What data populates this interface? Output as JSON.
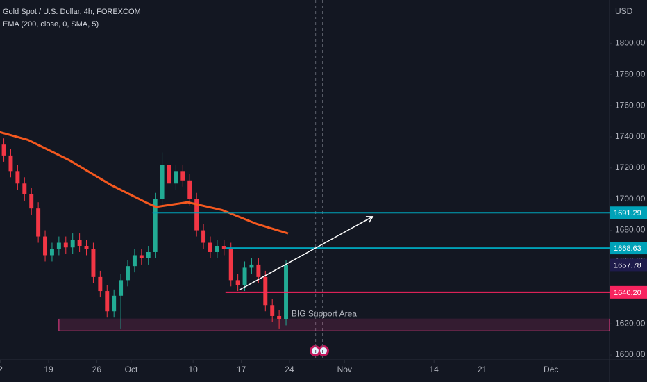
{
  "chart_data": {
    "type": "candlestick",
    "title": "Gold Spot / U.S. Dollar, 4h, FOREXCOM",
    "subtitle": "EMA (200, close, 0, SMA, 5)",
    "y_axis_label": "USD",
    "xlim": [
      254.94,
      343.5
    ],
    "xticks": [
      {
        "value": 255,
        "label": "2"
      },
      {
        "value": 262,
        "label": "19"
      },
      {
        "value": 269,
        "label": "26"
      },
      {
        "value": 274,
        "label": "Oct"
      },
      {
        "value": 283,
        "label": "10"
      },
      {
        "value": 290,
        "label": "17"
      },
      {
        "value": 297,
        "label": "24"
      },
      {
        "value": 305,
        "label": "Nov"
      },
      {
        "value": 318,
        "label": "14"
      },
      {
        "value": 325,
        "label": "21"
      },
      {
        "value": 335,
        "label": "Dec"
      }
    ],
    "ylim": [
      1596.9,
      1827.8
    ],
    "yticks": [
      {
        "value": 1600,
        "label": "1600.00"
      },
      {
        "value": 1620,
        "label": "1620.00"
      },
      {
        "value": 1640,
        "label": "1640.00"
      },
      {
        "value": 1660,
        "label": "1660.00"
      },
      {
        "value": 1680,
        "label": "1680.00"
      },
      {
        "value": 1700,
        "label": "1700.00"
      },
      {
        "value": 1720,
        "label": "1720.00"
      },
      {
        "value": 1740,
        "label": "1740.00"
      },
      {
        "value": 1760,
        "label": "1760.00"
      },
      {
        "value": 1780,
        "label": "1780.00"
      },
      {
        "value": 1800,
        "label": "1800.00"
      }
    ],
    "grid": false,
    "up_color": "#22ab94",
    "down_color": "#f23645",
    "x": [
      255.5,
      256.5,
      257.5,
      258.5,
      259.5,
      260.5,
      261.5,
      262.5,
      263.5,
      264.5,
      265.5,
      266.5,
      267.5,
      268.5,
      269.5,
      270.5,
      271.5,
      272.5,
      273.5,
      274.5,
      275.5,
      276.5,
      277.5,
      278.5,
      279.5,
      280.5,
      281.5,
      282.5,
      283.5,
      284.5,
      285.5,
      286.5,
      287.5,
      288.5,
      289.5,
      290.5,
      291.5,
      292.5,
      293.5,
      294.5,
      295.5,
      296.5
    ],
    "open": [
      1735,
      1728,
      1718,
      1710,
      1703,
      1694,
      1676,
      1664,
      1668,
      1672,
      1669,
      1674,
      1670,
      1668,
      1650,
      1641,
      1628,
      1638,
      1648,
      1657,
      1664,
      1662,
      1666,
      1700,
      1722,
      1710,
      1718,
      1712,
      1700,
      1680,
      1672,
      1666,
      1670,
      1668,
      1648,
      1645,
      1656,
      1658,
      1650,
      1632,
      1625,
      1623
    ],
    "high": [
      1739,
      1732,
      1722,
      1714,
      1707,
      1698,
      1680,
      1672,
      1676,
      1676,
      1678,
      1678,
      1674,
      1672,
      1654,
      1645,
      1642,
      1652,
      1661,
      1668,
      1668,
      1670,
      1704,
      1730,
      1726,
      1722,
      1722,
      1716,
      1704,
      1684,
      1676,
      1674,
      1674,
      1672,
      1652,
      1660,
      1662,
      1662,
      1654,
      1636,
      1629,
      1661
    ],
    "low": [
      1724,
      1714,
      1706,
      1699,
      1690,
      1672,
      1660,
      1660,
      1664,
      1665,
      1665,
      1666,
      1664,
      1646,
      1637,
      1624,
      1624,
      1617,
      1644,
      1653,
      1658,
      1658,
      1662,
      1696,
      1706,
      1706,
      1708,
      1696,
      1676,
      1668,
      1662,
      1662,
      1664,
      1644,
      1641,
      1641,
      1652,
      1646,
      1628,
      1621,
      1617,
      1619
    ],
    "close": [
      1728,
      1718,
      1710,
      1703,
      1694,
      1676,
      1664,
      1668,
      1672,
      1669,
      1674,
      1670,
      1668,
      1650,
      1641,
      1628,
      1638,
      1648,
      1657,
      1664,
      1662,
      1666,
      1700,
      1722,
      1710,
      1718,
      1712,
      1700,
      1680,
      1672,
      1666,
      1670,
      1668,
      1648,
      1645,
      1656,
      1658,
      1650,
      1632,
      1625,
      1623,
      1657.78
    ],
    "ema": {
      "color": "#f4581f",
      "x": [
        254.9,
        259,
        265,
        271.1,
        276.1,
        277.6,
        282.2,
        287.2,
        292.3,
        296.8
      ],
      "values": [
        1743,
        1738,
        1725,
        1709,
        1698,
        1695,
        1698,
        1693,
        1684,
        1678
      ]
    },
    "levels": {
      "values": [
        1691.29,
        1668.63,
        1640.2
      ],
      "value_labels": [
        "1691.29",
        "1668.63",
        "1640.20"
      ],
      "start": [
        277.1,
        287.7,
        287.7
      ],
      "colors": [
        "#00a2b8",
        "#00a2b8",
        "#f7245f"
      ]
    },
    "last_price": 1657.78,
    "last_price_color": "#1e1b4b",
    "support_area": {
      "label": "BIG Support Area",
      "x": [
        263.5,
        343.5
      ],
      "y": [
        1615.5,
        1623
      ],
      "color": "#f23e8a"
    },
    "trendline": {
      "x": [
        289.7,
        309.1
      ],
      "y": [
        1641.7,
        1688.8
      ],
      "color": "#ffffff"
    },
    "session_lines": [
      300.8,
      301.8
    ]
  }
}
